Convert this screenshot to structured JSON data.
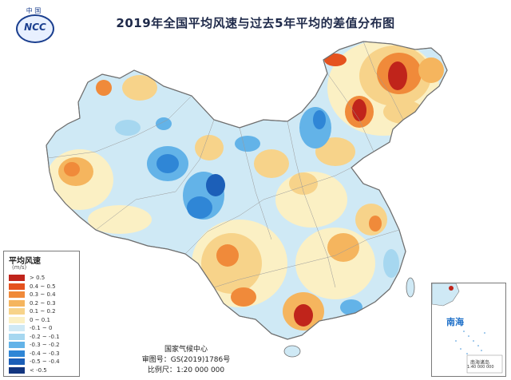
{
  "title": "2019年全国平均风速与过去5年平均的差值分布图",
  "logo": {
    "top_text": "中 国",
    "text": "NCC",
    "emblem_name": "ncc-logo"
  },
  "legend": {
    "title": "平均风速",
    "unit": "(m/s)",
    "items": [
      {
        "label": "> 0.5",
        "color": "#c0241b"
      },
      {
        "label": "0.4 ~ 0.5",
        "color": "#e5521e"
      },
      {
        "label": "0.3 ~ 0.4",
        "color": "#f08a3a"
      },
      {
        "label": "0.2 ~ 0.3",
        "color": "#f5b55e"
      },
      {
        "label": "0.1 ~ 0.2",
        "color": "#f7d38a"
      },
      {
        "label": "0 ~ 0.1",
        "color": "#fbf0c4"
      },
      {
        "label": "-0.1 ~ 0",
        "color": "#cfe9f5"
      },
      {
        "label": "-0.2 ~ -0.1",
        "color": "#a6d7f0"
      },
      {
        "label": "-0.3 ~ -0.2",
        "color": "#63b3e8"
      },
      {
        "label": "-0.4 ~ -0.3",
        "color": "#2f86d6"
      },
      {
        "label": "-0.5 ~ -0.4",
        "color": "#1c5fb8"
      },
      {
        "label": "< -0.5",
        "color": "#12357f"
      }
    ]
  },
  "credit": {
    "org": "国家气候中心",
    "map_no": "审图号：GS(2019)1786号",
    "scale": "比例尺：1:20 000 000"
  },
  "inset": {
    "sea_label": "南海",
    "islands_label": "南海诸岛",
    "scale": "1:40 000 000"
  }
}
